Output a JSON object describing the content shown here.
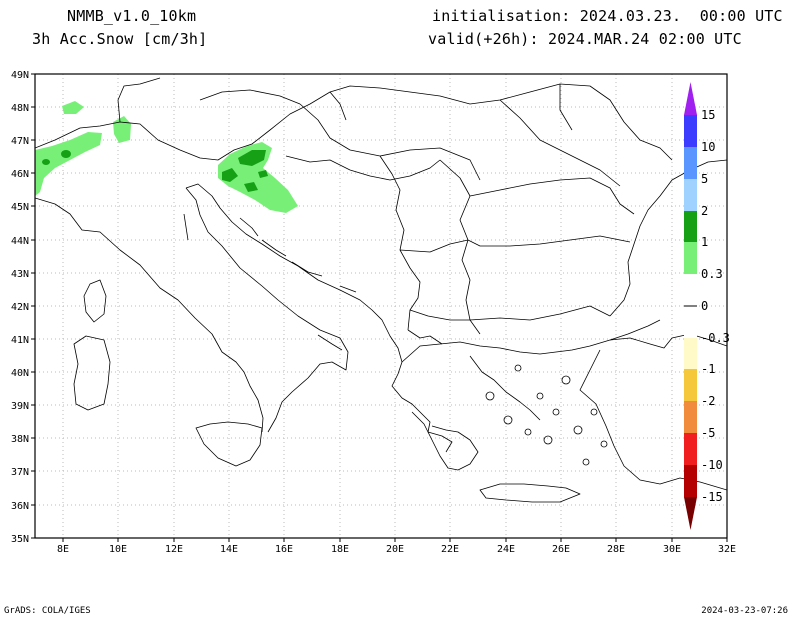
{
  "header": {
    "model": "NMMB_v1.0_10km",
    "field": "3h Acc.Snow [cm/3h]",
    "init": "initialisation: 2024.03.23.  00:00 UTC",
    "valid": "valid(+26h): 2024.MAR.24 02:00 UTC"
  },
  "footer": {
    "credit": "GrADS: COLA/IGES",
    "stamp": "2024-03-23-07:26"
  },
  "map": {
    "lon_labels": [
      "8E",
      "10E",
      "12E",
      "14E",
      "16E",
      "18E",
      "20E",
      "22E",
      "24E",
      "26E",
      "28E",
      "30E",
      "32E"
    ],
    "lat_labels": [
      "49N",
      "48N",
      "47N",
      "46N",
      "45N",
      "44N",
      "43N",
      "42N",
      "41N",
      "40N",
      "39N",
      "38N",
      "37N",
      "36N",
      "35N"
    ],
    "lon_range": [
      7,
      32
    ],
    "lat_range": [
      35,
      49
    ],
    "grid": "dotted"
  },
  "colorbar": {
    "labels": [
      "15",
      "10",
      "5",
      "2",
      "1",
      "0.3",
      "0",
      "-0.3",
      "-1",
      "-2",
      "-5",
      "-10",
      "-15"
    ],
    "colors": {
      "top_arrow": "#a020f0",
      "band_10_15": "#3c3cff",
      "band_5_10": "#5a96ff",
      "band_2_5": "#a0d2ff",
      "band_1_2": "#16a016",
      "band_03_1": "#78f078",
      "band_neutral": "#ffffff",
      "band_m03_m1": "#fffac8",
      "band_m1_m2": "#f5c83c",
      "band_m2_m5": "#f08c3c",
      "band_m5_m10": "#f01e1e",
      "band_m10_m15": "#b40000",
      "bottom_arrow": "#780000"
    }
  }
}
